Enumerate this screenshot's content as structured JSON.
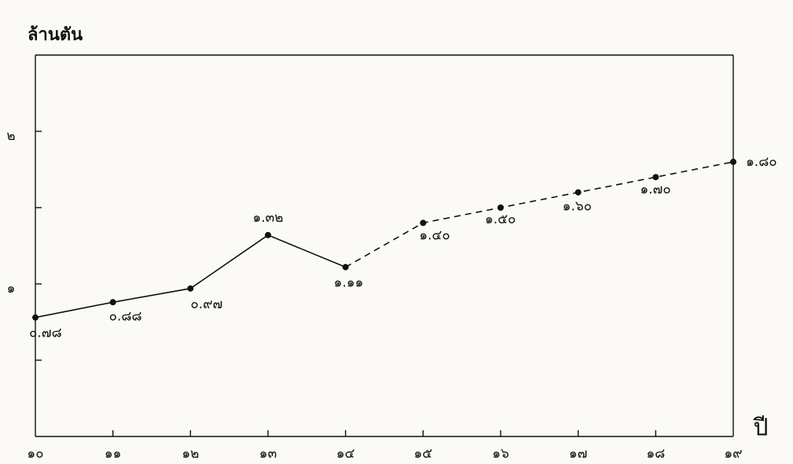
{
  "chart_data": {
    "type": "line",
    "y_axis_label": "ล้านตัน",
    "x_axis_label": "ปี",
    "categories": [
      "๑๐",
      "๑๑",
      "๑๒",
      "๑๓",
      "๑๔",
      "๑๕",
      "๑๖",
      "๑๗",
      "๑๘",
      "๑๙"
    ],
    "values": [
      0.78,
      0.88,
      0.97,
      1.32,
      1.11,
      1.4,
      1.5,
      1.6,
      1.7,
      1.8
    ],
    "value_labels": [
      "๐.๗๘",
      "๐.๘๘",
      "๐.๙๗",
      "๑.๓๒",
      "๑.๑๑",
      "๑.๔๐",
      "๑.๕๐",
      "๑.๖๐",
      "๑.๗๐",
      "๑.๘๐"
    ],
    "segment_styles": [
      "solid",
      "solid",
      "solid",
      "solid",
      "dashed",
      "dashed",
      "dashed",
      "dashed",
      "dashed"
    ],
    "color": "#111111",
    "ylim": [
      0,
      2.5
    ],
    "yticks": [
      {
        "value": 1,
        "label": "๑"
      },
      {
        "value": 2,
        "label": "๒"
      }
    ],
    "yminor_ticks": [
      0.5,
      1.5
    ]
  }
}
